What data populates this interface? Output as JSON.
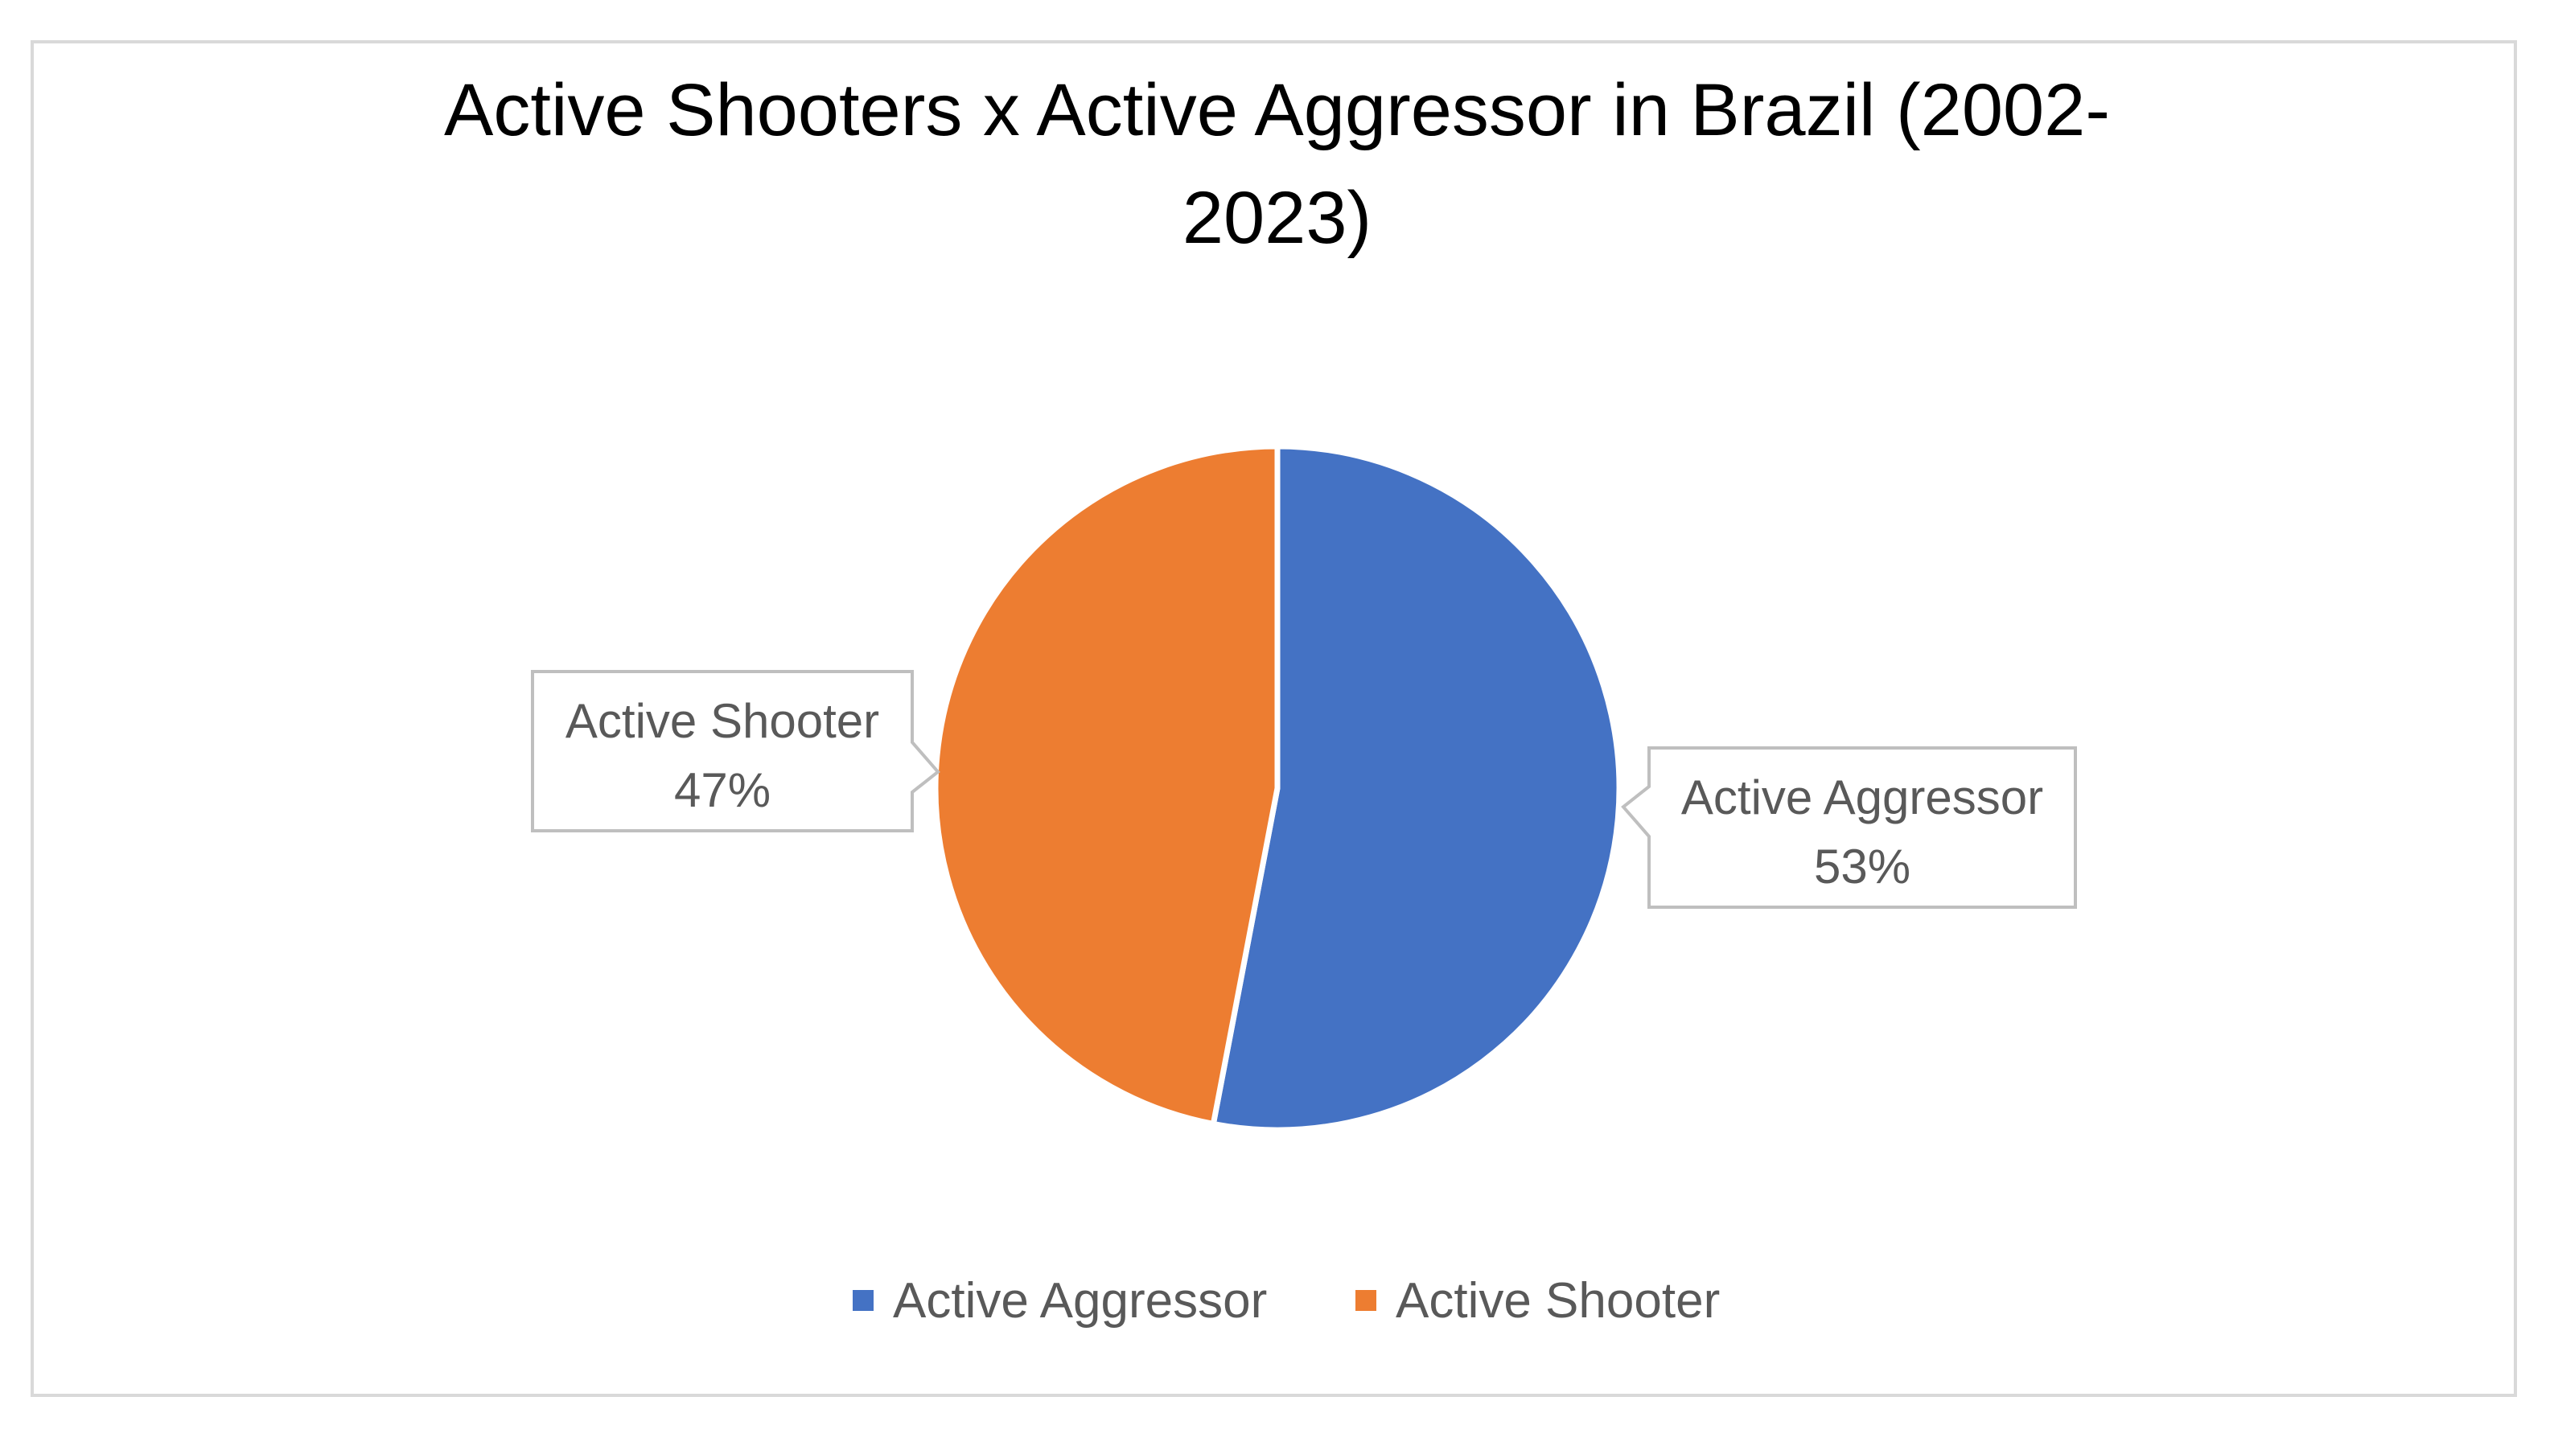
{
  "chart_data": {
    "type": "pie",
    "title_lines": [
      "Active Shooters x Active Aggressor in Brazil (2002-",
      "2023)"
    ],
    "slices": [
      {
        "label": "Active Aggressor",
        "value": 53,
        "percent_label": "53%",
        "color": "#4472c4"
      },
      {
        "label": "Active Shooter",
        "value": 47,
        "percent_label": "47%",
        "color": "#ed7d31"
      }
    ],
    "legend": {
      "position": "bottom",
      "entries": [
        {
          "label": "Active Aggressor",
          "color": "#4472c4"
        },
        {
          "label": "Active Shooter",
          "color": "#ed7d31"
        }
      ]
    },
    "data_labels": "callout: category name and percentage"
  }
}
